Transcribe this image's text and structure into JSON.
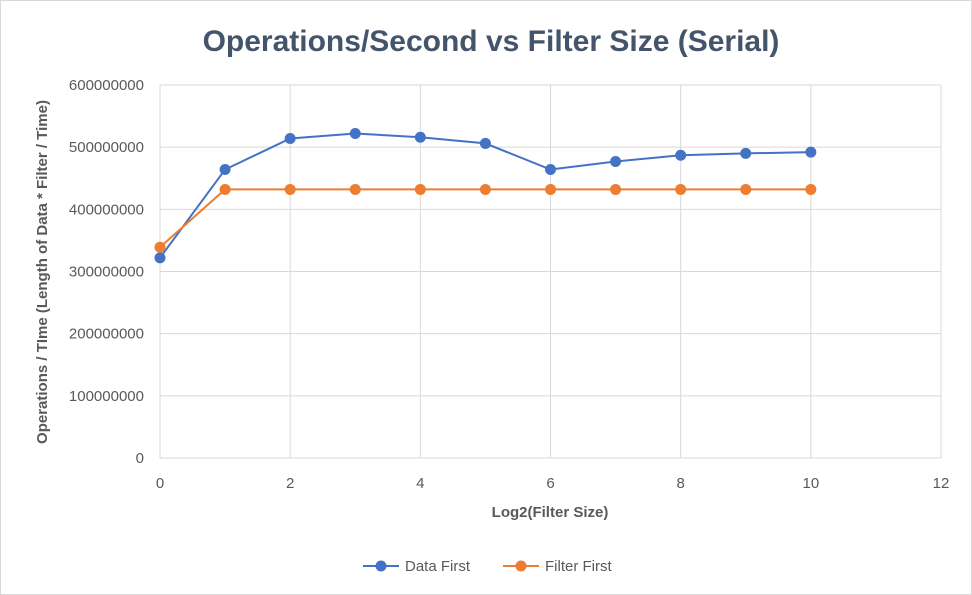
{
  "chart_data": {
    "type": "scatter",
    "title": "Operations/Second vs Filter Size (Serial)",
    "xlabel": "Log2(Filter Size)",
    "ylabel": "Operations / TIme (Length of Data * Filter / Time)",
    "xlim": [
      0,
      12
    ],
    "ylim": [
      0,
      600000000
    ],
    "xticks": [
      "0",
      "2",
      "4",
      "6",
      "8",
      "10",
      "12"
    ],
    "yticks": [
      "0",
      "100000000",
      "200000000",
      "300000000",
      "400000000",
      "500000000",
      "600000000"
    ],
    "grid": true,
    "legend_position": "bottom",
    "series": [
      {
        "name": "Data First",
        "color": "#4472c4",
        "x": [
          0,
          1,
          2,
          3,
          4,
          5,
          6,
          7,
          8,
          9,
          10
        ],
        "y": [
          322000000,
          464000000,
          514000000,
          522000000,
          516000000,
          506000000,
          464000000,
          477000000,
          487000000,
          490000000,
          492000000
        ]
      },
      {
        "name": "Filter First",
        "color": "#ed7d31",
        "x": [
          0,
          1,
          2,
          3,
          4,
          5,
          6,
          7,
          8,
          9,
          10
        ],
        "y": [
          339000000,
          432000000,
          432000000,
          432000000,
          432000000,
          432000000,
          432000000,
          432000000,
          432000000,
          432000000,
          432000000
        ]
      }
    ]
  }
}
